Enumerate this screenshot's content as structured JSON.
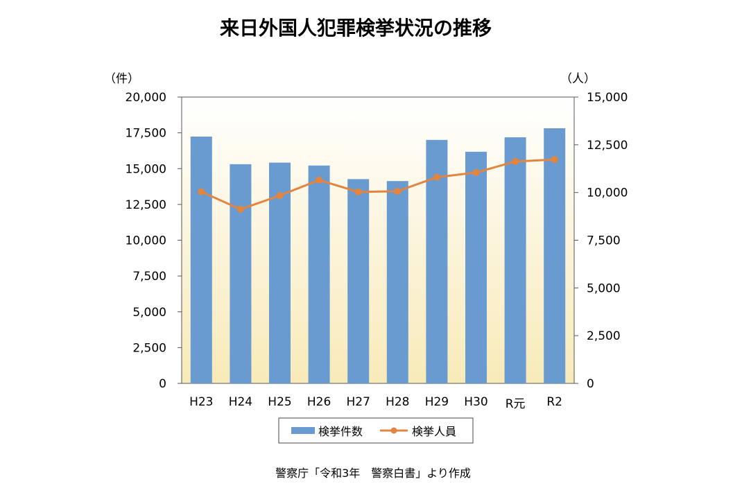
{
  "chart_data": {
    "type": "bar+line",
    "title": "来日外国人犯罪検挙状況の推移",
    "categories": [
      "H23",
      "H24",
      "H25",
      "H26",
      "H27",
      "H28",
      "H29",
      "H30",
      "R元",
      "R2"
    ],
    "series": [
      {
        "name": "検挙件数",
        "type": "bar",
        "axis": "left",
        "color": "#6a9bd0",
        "values": [
          17240,
          15310,
          15420,
          15215,
          14267,
          14133,
          17006,
          16180,
          17190,
          17820
        ]
      },
      {
        "name": "検挙人員",
        "type": "line",
        "axis": "right",
        "color": "#e3843f",
        "values": [
          10040,
          9120,
          9840,
          10650,
          10030,
          10065,
          10800,
          11045,
          11625,
          11725
        ]
      }
    ],
    "left_axis": {
      "unit_label": "（件）",
      "range": [
        0,
        20000
      ],
      "ticks": [
        "0",
        "2,500",
        "5,000",
        "7,500",
        "10,000",
        "12,500",
        "15,000",
        "17,500",
        "20,000"
      ]
    },
    "right_axis": {
      "unit_label": "（人）",
      "range": [
        0,
        15000
      ],
      "ticks": [
        "0",
        "2,500",
        "5,000",
        "7,500",
        "10,000",
        "12,500",
        "15,000"
      ]
    },
    "legend_placement": "bottom",
    "grid": false,
    "source": "警察庁「令和3年　警察白書」より作成"
  }
}
